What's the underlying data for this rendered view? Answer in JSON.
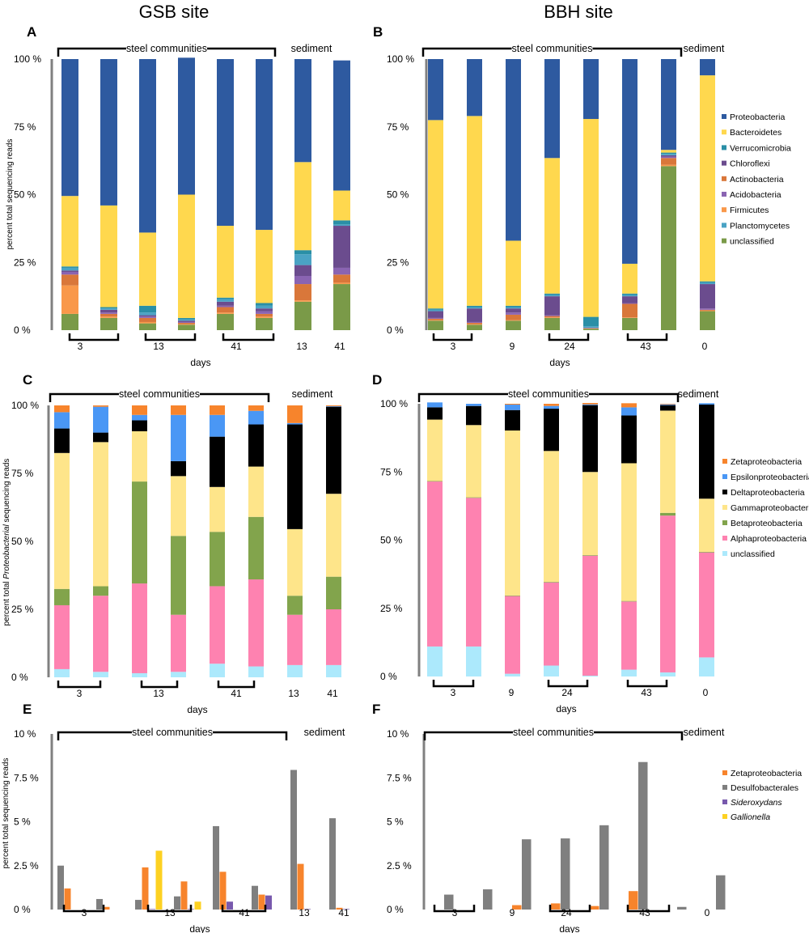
{
  "site_titles": {
    "left": "GSB site",
    "right": "BBH site"
  },
  "colors": {
    "Proteobacteria": "#2e5aa0",
    "Bacteroidetes": "#ffd84e",
    "Verrucomicrobia": "#2a8fa6",
    "Chloroflexi": "#6b4c8e",
    "Actinobacteria": "#d9773a",
    "Acidobacteria": "#8a64b2",
    "Firmicutes": "#f9984a",
    "Planctomycetes": "#4aa3c4",
    "unclassified": "#7a9a48",
    "Zetaproteobacteria": "#f7842c",
    "Epsilonproteobacteria": "#4a97f5",
    "Deltaproteobacteria": "#000000",
    "Gammaproteobacteria": "#fee58a",
    "Betaproteobacteria": "#82a44c",
    "Alphaproteobacteria": "#fe82b0",
    "unclassified_proteo": "#ace9fc",
    "Desulfobacterales": "#7f7f7f",
    "Sideroxydans": "#7859ad",
    "Gallionella": "#fdd122",
    "axis": "#808080"
  },
  "chart_data": [
    {
      "panel": "A",
      "type": "bar",
      "stacked": true,
      "ylabel": "percent total sequencing reads",
      "yticks": [
        "0 %",
        "25 %",
        "50 %",
        "75 %",
        "100 %"
      ],
      "ylim": [
        0,
        100
      ],
      "group_labels": [
        "steel communities",
        "sediment"
      ],
      "xlabel": "days",
      "xtick_labels": [
        "3",
        "13",
        "41",
        "13",
        "41"
      ],
      "series_order": [
        "unclassified",
        "Firmicutes",
        "Actinobacteria",
        "Acidobacteria",
        "Chloroflexi",
        "Planctomycetes",
        "Verrucomicrobia",
        "Bacteroidetes",
        "Proteobacteria"
      ],
      "bars": [
        {
          "unclassified": 6,
          "Firmicutes": 10.5,
          "Actinobacteria": 4,
          "Acidobacteria": 1,
          "Chloroflexi": 0.5,
          "Planctomycetes": 1,
          "Verrucomicrobia": 0.5,
          "Bacteroidetes": 26,
          "Proteobacteria": 50.5
        },
        {
          "unclassified": 4.5,
          "Firmicutes": 0.5,
          "Actinobacteria": 1,
          "Acidobacteria": 0.5,
          "Chloroflexi": 1,
          "Planctomycetes": 0.5,
          "Verrucomicrobia": 0.5,
          "Bacteroidetes": 37.5,
          "Proteobacteria": 54
        },
        {
          "unclassified": 2.5,
          "Firmicutes": 0.5,
          "Actinobacteria": 1.5,
          "Acidobacteria": 0.5,
          "Chloroflexi": 0.5,
          "Planctomycetes": 1,
          "Verrucomicrobia": 2.5,
          "Bacteroidetes": 27,
          "Proteobacteria": 64
        },
        {
          "unclassified": 2,
          "Firmicutes": 0.2,
          "Actinobacteria": 0.5,
          "Acidobacteria": 0.3,
          "Chloroflexi": 0.5,
          "Planctomycetes": 0.5,
          "Verrucomicrobia": 0.5,
          "Bacteroidetes": 45.5,
          "Proteobacteria": 50.5
        },
        {
          "unclassified": 6,
          "Firmicutes": 0.5,
          "Actinobacteria": 2,
          "Acidobacteria": 0.5,
          "Chloroflexi": 1.5,
          "Planctomycetes": 1,
          "Verrucomicrobia": 0.5,
          "Bacteroidetes": 26.5,
          "Proteobacteria": 61.5
        },
        {
          "unclassified": 4.5,
          "Firmicutes": 0.5,
          "Actinobacteria": 1,
          "Acidobacteria": 1,
          "Chloroflexi": 1,
          "Planctomycetes": 1,
          "Verrucomicrobia": 1,
          "Bacteroidetes": 27,
          "Proteobacteria": 63
        },
        {
          "unclassified": 10.5,
          "Firmicutes": 0.5,
          "Actinobacteria": 6,
          "Acidobacteria": 3,
          "Chloroflexi": 4,
          "Planctomycetes": 4,
          "Verrucomicrobia": 1.5,
          "Bacteroidetes": 32.5,
          "Proteobacteria": 38
        },
        {
          "unclassified": 17,
          "Firmicutes": 0.5,
          "Actinobacteria": 3,
          "Acidobacteria": 2.5,
          "Chloroflexi": 15.5,
          "Planctomycetes": 0.5,
          "Verrucomicrobia": 1.5,
          "Bacteroidetes": 11,
          "Proteobacteria": 48
        }
      ]
    },
    {
      "panel": "B",
      "type": "bar",
      "stacked": true,
      "yticks": [
        "0 %",
        "25 %",
        "50 %",
        "75 %",
        "100 %"
      ],
      "ylim": [
        0,
        100
      ],
      "group_labels": [
        "steel communities",
        "sediment"
      ],
      "xlabel": "days",
      "xtick_labels": [
        "3",
        "9",
        "24",
        "43",
        "0"
      ],
      "legend": [
        "Proteobacteria",
        "Bacteroidetes",
        "Verrucomicrobia",
        "Chloroflexi",
        "Actinobacteria",
        "Acidobacteria",
        "Firmicutes",
        "Planctomycetes",
        "unclassified"
      ],
      "series_order": [
        "unclassified",
        "Firmicutes",
        "Actinobacteria",
        "Acidobacteria",
        "Chloroflexi",
        "Planctomycetes",
        "Verrucomicrobia",
        "Bacteroidetes",
        "Proteobacteria"
      ],
      "bars": [
        {
          "unclassified": 3.5,
          "Firmicutes": 0.2,
          "Actinobacteria": 0.5,
          "Acidobacteria": 0.3,
          "Chloroflexi": 2.5,
          "Planctomycetes": 0.5,
          "Verrucomicrobia": 0.5,
          "Bacteroidetes": 69.5,
          "Proteobacteria": 22.5
        },
        {
          "unclassified": 2,
          "Firmicutes": 0.2,
          "Actinobacteria": 0.5,
          "Acidobacteria": 0.3,
          "Chloroflexi": 5,
          "Planctomycetes": 0.5,
          "Verrucomicrobia": 0.5,
          "Bacteroidetes": 70,
          "Proteobacteria": 21
        },
        {
          "unclassified": 3.5,
          "Firmicutes": 0.2,
          "Actinobacteria": 2,
          "Acidobacteria": 0.8,
          "Chloroflexi": 1.5,
          "Planctomycetes": 0.5,
          "Verrucomicrobia": 0.5,
          "Bacteroidetes": 24,
          "Proteobacteria": 67
        },
        {
          "unclassified": 4.5,
          "Firmicutes": 0.2,
          "Actinobacteria": 0.5,
          "Acidobacteria": 0.3,
          "Chloroflexi": 7,
          "Planctomycetes": 0.5,
          "Verrucomicrobia": 0.5,
          "Bacteroidetes": 50,
          "Proteobacteria": 36.5
        },
        {
          "unclassified": 0.5,
          "Firmicutes": 0.1,
          "Actinobacteria": 0.1,
          "Acidobacteria": 0.1,
          "Chloroflexi": 0.1,
          "Planctomycetes": 0.5,
          "Verrucomicrobia": 3.5,
          "Bacteroidetes": 73,
          "Proteobacteria": 22.1
        },
        {
          "unclassified": 4.5,
          "Firmicutes": 0.2,
          "Actinobacteria": 5,
          "Acidobacteria": 0.3,
          "Chloroflexi": 2.5,
          "Planctomycetes": 0.5,
          "Verrucomicrobia": 0.5,
          "Bacteroidetes": 11,
          "Proteobacteria": 75.5
        },
        {
          "unclassified": 60.5,
          "Firmicutes": 0.5,
          "Actinobacteria": 2.5,
          "Acidobacteria": 0.5,
          "Chloroflexi": 0.5,
          "Planctomycetes": 0.5,
          "Verrucomicrobia": 0.5,
          "Bacteroidetes": 1,
          "Proteobacteria": 33.5
        },
        {
          "unclassified": 7,
          "Firmicutes": 0.2,
          "Actinobacteria": 0.3,
          "Acidobacteria": 0.5,
          "Chloroflexi": 9,
          "Planctomycetes": 0.5,
          "Verrucomicrobia": 0.5,
          "Bacteroidetes": 76,
          "Proteobacteria": 6
        }
      ]
    },
    {
      "panel": "C",
      "type": "bar",
      "stacked": true,
      "ylabel_parts": [
        "percent total ",
        "Proteobacterial",
        " sequencing reads"
      ],
      "yticks": [
        "0 %",
        "25 %",
        "50 %",
        "75 %",
        "100 %"
      ],
      "ylim": [
        0,
        100
      ],
      "group_labels": [
        "steel communities",
        "sediment"
      ],
      "xlabel": "days",
      "xtick_labels": [
        "3",
        "13",
        "41",
        "13",
        "41"
      ],
      "series_order": [
        "unclassified_proteo",
        "Alphaproteobacteria",
        "Betaproteobacteria",
        "Gammaproteobacteria",
        "Deltaproteobacteria",
        "Epsilonproteobacteria",
        "Zetaproteobacteria"
      ],
      "bars": [
        {
          "unclassified_proteo": 3,
          "Alphaproteobacteria": 23.5,
          "Betaproteobacteria": 6,
          "Gammaproteobacteria": 50,
          "Deltaproteobacteria": 9,
          "Epsilonproteobacteria": 6,
          "Zetaproteobacteria": 2.5
        },
        {
          "unclassified_proteo": 2,
          "Alphaproteobacteria": 28,
          "Betaproteobacteria": 3.5,
          "Gammaproteobacteria": 53,
          "Deltaproteobacteria": 3.5,
          "Epsilonproteobacteria": 9.5,
          "Zetaproteobacteria": 0.5
        },
        {
          "unclassified_proteo": 1.5,
          "Alphaproteobacteria": 33,
          "Betaproteobacteria": 37.5,
          "Gammaproteobacteria": 18.5,
          "Deltaproteobacteria": 4,
          "Epsilonproteobacteria": 2,
          "Zetaproteobacteria": 3.5
        },
        {
          "unclassified_proteo": 2,
          "Alphaproteobacteria": 21,
          "Betaproteobacteria": 29,
          "Gammaproteobacteria": 22,
          "Deltaproteobacteria": 5.5,
          "Epsilonproteobacteria": 17,
          "Zetaproteobacteria": 3.5
        },
        {
          "unclassified_proteo": 5,
          "Alphaproteobacteria": 28.5,
          "Betaproteobacteria": 20,
          "Gammaproteobacteria": 16.5,
          "Deltaproteobacteria": 18.5,
          "Epsilonproteobacteria": 8,
          "Zetaproteobacteria": 3.5
        },
        {
          "unclassified_proteo": 4,
          "Alphaproteobacteria": 32,
          "Betaproteobacteria": 23,
          "Gammaproteobacteria": 18.5,
          "Deltaproteobacteria": 15.5,
          "Epsilonproteobacteria": 5,
          "Zetaproteobacteria": 2
        },
        {
          "unclassified_proteo": 4.5,
          "Alphaproteobacteria": 18.5,
          "Betaproteobacteria": 7,
          "Gammaproteobacteria": 24.5,
          "Deltaproteobacteria": 38.5,
          "Epsilonproteobacteria": 0.5,
          "Zetaproteobacteria": 6.5
        },
        {
          "unclassified_proteo": 4.5,
          "Alphaproteobacteria": 20.5,
          "Betaproteobacteria": 12,
          "Gammaproteobacteria": 30.5,
          "Deltaproteobacteria": 32,
          "Epsilonproteobacteria": 0.2,
          "Zetaproteobacteria": 0.3
        }
      ]
    },
    {
      "panel": "D",
      "type": "bar",
      "stacked": true,
      "yticks": [
        "0 %",
        "25 %",
        "50 %",
        "75 %",
        "100 %"
      ],
      "ylim": [
        0,
        100
      ],
      "group_labels": [
        "steel communities",
        "sediment"
      ],
      "xlabel": "days",
      "xtick_labels": [
        "3",
        "9",
        "24",
        "43",
        "0"
      ],
      "legend": [
        "Zetaproteobacteria",
        "Epsilonproteobacteria",
        "Deltaproteobacteria",
        "Gammaproteobacteria",
        "Betaproteobacteria",
        "Alphaproteobacteria",
        "unclassified"
      ],
      "series_order": [
        "unclassified_proteo",
        "Alphaproteobacteria",
        "Betaproteobacteria",
        "Gammaproteobacteria",
        "Deltaproteobacteria",
        "Epsilonproteobacteria",
        "Zetaproteobacteria"
      ],
      "bars": [
        {
          "unclassified_proteo": 11,
          "Alphaproteobacteria": 60.5,
          "Betaproteobacteria": 0.2,
          "Gammaproteobacteria": 22.5,
          "Deltaproteobacteria": 4.5,
          "Epsilonproteobacteria": 1.8,
          "Zetaproteobacteria": 0
        },
        {
          "unclassified_proteo": 11,
          "Alphaproteobacteria": 54.5,
          "Betaproteobacteria": 0.2,
          "Gammaproteobacteria": 26.5,
          "Deltaproteobacteria": 7,
          "Epsilonproteobacteria": 0.8,
          "Zetaproteobacteria": 0
        },
        {
          "unclassified_proteo": 1,
          "Alphaproteobacteria": 28.5,
          "Betaproteobacteria": 0.2,
          "Gammaproteobacteria": 60.5,
          "Deltaproteobacteria": 7.5,
          "Epsilonproteobacteria": 2,
          "Zetaproteobacteria": 0.3
        },
        {
          "unclassified_proteo": 4,
          "Alphaproteobacteria": 30.5,
          "Betaproteobacteria": 0.2,
          "Gammaproteobacteria": 48,
          "Deltaproteobacteria": 15.5,
          "Epsilonproteobacteria": 1,
          "Zetaproteobacteria": 0.8
        },
        {
          "unclassified_proteo": 0.3,
          "Alphaproteobacteria": 44,
          "Betaproteobacteria": 0.2,
          "Gammaproteobacteria": 30.5,
          "Deltaproteobacteria": 24.5,
          "Epsilonproteobacteria": 0.3,
          "Zetaproteobacteria": 0.5
        },
        {
          "unclassified_proteo": 2.5,
          "Alphaproteobacteria": 25,
          "Betaproteobacteria": 0.2,
          "Gammaproteobacteria": 50.5,
          "Deltaproteobacteria": 17.5,
          "Epsilonproteobacteria": 3,
          "Zetaproteobacteria": 1.5
        },
        {
          "unclassified_proteo": 1.5,
          "Alphaproteobacteria": 57.5,
          "Betaproteobacteria": 1,
          "Gammaproteobacteria": 37.5,
          "Deltaproteobacteria": 2,
          "Epsilonproteobacteria": 0.3,
          "Zetaproteobacteria": 0.2
        },
        {
          "unclassified_proteo": 7,
          "Alphaproteobacteria": 38.5,
          "Betaproteobacteria": 0.2,
          "Gammaproteobacteria": 19.5,
          "Deltaproteobacteria": 34.5,
          "Epsilonproteobacteria": 0.5,
          "Zetaproteobacteria": 0
        }
      ]
    },
    {
      "panel": "E",
      "type": "bar",
      "stacked": false,
      "ylabel": "percent total sequencing reads",
      "yticks": [
        "0 %",
        "2.5 %",
        "5 %",
        "7.5 %",
        "10 %"
      ],
      "ylim": [
        0,
        10
      ],
      "group_labels": [
        "steel communities",
        "sediment"
      ],
      "xlabel": "days",
      "xtick_labels": [
        "3",
        "13",
        "41",
        "13",
        "41"
      ],
      "series_order": [
        "Desulfobacterales",
        "Zetaproteobacteria",
        "Sideroxydans",
        "Gallionella"
      ],
      "bars": [
        {
          "Desulfobacterales": 2.5,
          "Zetaproteobacteria": 1.2,
          "Sideroxydans": 0,
          "Gallionella": 0
        },
        {
          "Desulfobacterales": 0.6,
          "Zetaproteobacteria": 0.15,
          "Sideroxydans": 0,
          "Gallionella": 0
        },
        {
          "Desulfobacterales": 0.55,
          "Zetaproteobacteria": 2.4,
          "Sideroxydans": 0.03,
          "Gallionella": 3.35
        },
        {
          "Desulfobacterales": 0.75,
          "Zetaproteobacteria": 1.6,
          "Sideroxydans": 0.03,
          "Gallionella": 0.45
        },
        {
          "Desulfobacterales": 4.75,
          "Zetaproteobacteria": 2.15,
          "Sideroxydans": 0.45,
          "Gallionella": 0
        },
        {
          "Desulfobacterales": 1.35,
          "Zetaproteobacteria": 0.85,
          "Sideroxydans": 0.8,
          "Gallionella": 0
        },
        {
          "Desulfobacterales": 7.95,
          "Zetaproteobacteria": 2.6,
          "Sideroxydans": 0.03,
          "Gallionella": 0
        },
        {
          "Desulfobacterales": 5.2,
          "Zetaproteobacteria": 0.1,
          "Sideroxydans": 0.03,
          "Gallionella": 0
        }
      ]
    },
    {
      "panel": "F",
      "type": "bar",
      "stacked": false,
      "yticks": [
        "0 %",
        "2.5 %",
        "5 %",
        "7.5 %",
        "10 %"
      ],
      "ylim": [
        0,
        10
      ],
      "group_labels": [
        "steel communities",
        "sediment"
      ],
      "xlabel": "days",
      "xtick_labels": [
        "3",
        "9",
        "24",
        "43",
        "0"
      ],
      "legend": [
        "Zetaproteobacteria",
        "Desulfobacterales",
        "Sideroxydans",
        "Gallionella"
      ],
      "series_order": [
        "Zetaproteobacteria",
        "Desulfobacterales"
      ],
      "bars": [
        {
          "Zetaproteobacteria": 0,
          "Desulfobacterales": 0.85
        },
        {
          "Zetaproteobacteria": 0,
          "Desulfobacterales": 1.15
        },
        {
          "Zetaproteobacteria": 0.25,
          "Desulfobacterales": 4.0
        },
        {
          "Zetaproteobacteria": 0.35,
          "Desulfobacterales": 4.05
        },
        {
          "Zetaproteobacteria": 0.2,
          "Desulfobacterales": 4.8
        },
        {
          "Zetaproteobacteria": 1.05,
          "Desulfobacterales": 8.4
        },
        {
          "Zetaproteobacteria": 0,
          "Desulfobacterales": 0.15
        },
        {
          "Zetaproteobacteria": 0,
          "Desulfobacterales": 1.95
        }
      ]
    }
  ]
}
